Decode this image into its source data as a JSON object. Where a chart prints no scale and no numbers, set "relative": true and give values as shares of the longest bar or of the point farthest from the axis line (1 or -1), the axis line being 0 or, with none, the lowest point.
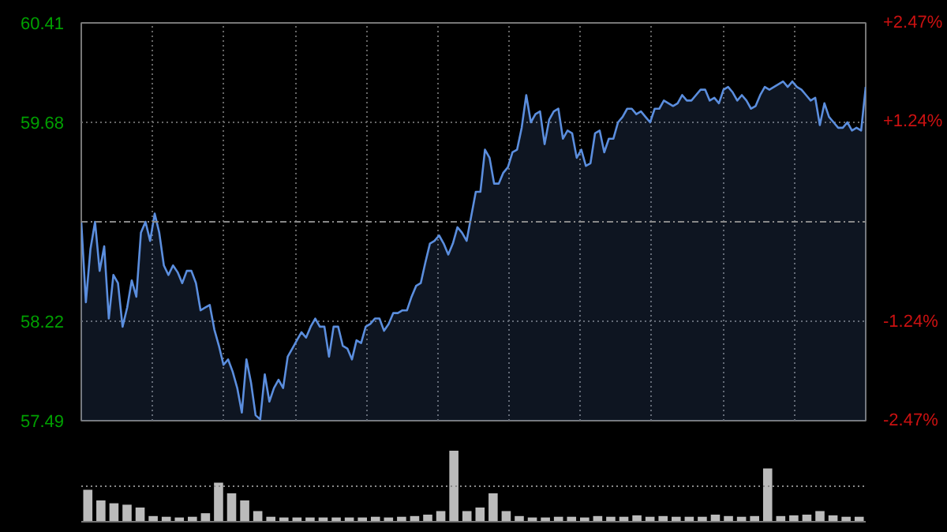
{
  "chart_data": [
    {
      "type": "area",
      "categories": [
        null,
        null,
        null,
        null,
        null,
        null,
        null,
        null,
        null,
        null,
        null,
        null,
        null,
        null,
        null,
        null,
        null,
        null,
        null,
        null,
        null,
        null,
        null,
        null,
        null,
        null,
        null,
        null,
        null,
        null,
        null,
        null,
        null,
        null,
        null,
        null,
        null,
        null,
        null,
        null,
        null,
        null,
        null,
        null,
        null,
        null,
        null,
        null,
        null,
        null,
        null,
        null,
        null,
        null,
        null,
        null,
        null,
        null,
        null,
        null,
        null,
        null,
        null,
        null,
        null,
        null,
        null,
        null,
        null,
        null,
        null,
        null,
        null,
        null,
        null,
        null,
        null,
        null,
        null,
        null,
        null,
        null,
        null,
        null,
        null,
        null,
        null,
        null,
        null,
        null,
        null,
        null,
        null,
        null,
        null,
        null,
        null,
        null,
        null,
        null,
        null,
        null,
        null,
        null,
        null,
        null,
        null,
        null,
        null,
        null,
        null,
        null,
        null,
        null,
        null,
        null,
        null,
        null,
        null,
        null,
        null,
        null,
        null,
        null,
        null,
        null,
        null,
        null,
        null,
        null,
        null,
        null,
        null,
        null,
        null,
        null,
        null,
        null,
        null,
        null,
        null,
        null,
        null,
        null,
        null,
        null,
        null,
        null,
        null,
        null,
        null,
        null,
        null,
        null,
        null,
        null,
        null,
        null,
        null,
        null,
        null,
        null,
        null,
        null,
        null,
        null,
        null,
        null,
        null,
        null,
        null,
        null
      ],
      "ylim": [
        57.49,
        60.41
      ],
      "yticks": [
        57.49,
        58.22,
        59.68,
        60.41
      ],
      "y2lim": [
        -2.47,
        2.47
      ],
      "y2ticks": [
        {
          "value": -2.47,
          "label": "-2.47%"
        },
        {
          "value": -1.24,
          "label": "-1.24%"
        },
        {
          "value": 1.24,
          "label": "+1.24%"
        },
        {
          "value": 2.47,
          "label": "+2.47%"
        }
      ],
      "grid": true,
      "ref_lines": [
        {
          "axis": "y",
          "value": 58.95,
          "label": null,
          "line_style": "dashed",
          "color": "#888888"
        }
      ],
      "series": [
        {
          "color": "#5b8ede",
          "values": [
            58.95,
            58.36,
            58.75,
            58.95,
            58.59,
            58.77,
            58.24,
            58.56,
            58.5,
            58.18,
            58.32,
            58.52,
            58.4,
            58.87,
            58.95,
            58.81,
            59.01,
            58.87,
            58.63,
            58.56,
            58.63,
            58.58,
            58.5,
            58.59,
            58.59,
            58.5,
            58.3,
            58.32,
            58.34,
            58.16,
            58.04,
            57.9,
            57.94,
            57.85,
            57.73,
            57.55,
            57.94,
            57.77,
            57.53,
            57.5,
            57.83,
            57.63,
            57.73,
            57.79,
            57.73,
            57.96,
            58.02,
            58.08,
            58.14,
            58.1,
            58.18,
            58.24,
            58.18,
            58.18,
            57.96,
            58.18,
            58.18,
            58.04,
            58.02,
            57.94,
            58.08,
            58.06,
            58.18,
            58.2,
            58.24,
            58.24,
            58.15,
            58.2,
            58.28,
            58.28,
            58.3,
            58.3,
            58.4,
            58.48,
            58.5,
            58.65,
            58.79,
            58.81,
            58.85,
            58.79,
            58.71,
            58.79,
            58.91,
            58.87,
            58.81,
            58.99,
            59.17,
            59.17,
            59.48,
            59.42,
            59.23,
            59.23,
            59.31,
            59.35,
            59.46,
            59.48,
            59.64,
            59.88,
            59.68,
            59.74,
            59.76,
            59.52,
            59.7,
            59.76,
            59.78,
            59.56,
            59.62,
            59.6,
            59.42,
            59.48,
            59.36,
            59.38,
            59.6,
            59.62,
            59.46,
            59.56,
            59.56,
            59.68,
            59.72,
            59.78,
            59.78,
            59.74,
            59.76,
            59.72,
            59.68,
            59.78,
            59.78,
            59.84,
            59.82,
            59.8,
            59.82,
            59.88,
            59.84,
            59.84,
            59.88,
            59.92,
            59.92,
            59.84,
            59.86,
            59.82,
            59.92,
            59.94,
            59.9,
            59.84,
            59.88,
            59.84,
            59.78,
            59.8,
            59.88,
            59.94,
            59.92,
            59.94,
            59.96,
            59.98,
            59.94,
            59.98,
            59.94,
            59.92,
            59.88,
            59.84,
            59.86,
            59.66,
            59.82,
            59.72,
            59.68,
            59.64,
            59.64,
            59.68,
            59.62,
            59.64,
            59.62,
            59.94
          ]
        }
      ]
    },
    {
      "type": "bar",
      "relative": true,
      "ref_lines": [
        {
          "axis": "y",
          "value": 0.5,
          "label": null,
          "line_style": "dotted",
          "color": "#888888"
        }
      ],
      "categories": [
        null,
        null,
        null,
        null,
        null,
        null,
        null,
        null,
        null,
        null,
        null,
        null,
        null,
        null,
        null,
        null,
        null,
        null,
        null,
        null,
        null,
        null,
        null,
        null,
        null,
        null,
        null,
        null,
        null,
        null,
        null,
        null,
        null,
        null,
        null,
        null,
        null,
        null,
        null,
        null,
        null,
        null,
        null,
        null,
        null,
        null,
        null,
        null,
        null,
        null,
        null,
        null,
        null,
        null,
        null,
        null,
        null,
        null,
        null,
        null
      ],
      "series": [
        {
          "color": "#bbbbbb",
          "values": [
            0.45,
            0.3,
            0.26,
            0.24,
            0.2,
            0.08,
            0.07,
            0.06,
            0.07,
            0.12,
            0.55,
            0.4,
            0.3,
            0.15,
            0.07,
            0.06,
            0.06,
            0.06,
            0.06,
            0.06,
            0.06,
            0.06,
            0.07,
            0.06,
            0.07,
            0.08,
            0.1,
            0.15,
            1,
            0.15,
            0.2,
            0.4,
            0.15,
            0.08,
            0.06,
            0.06,
            0.07,
            0.07,
            0.06,
            0.08,
            0.07,
            0.07,
            0.09,
            0.07,
            0.08,
            0.07,
            0.07,
            0.07,
            0.1,
            0.08,
            0.07,
            0.08,
            0.75,
            0.08,
            0.09,
            0.1,
            0.15,
            0.09,
            0.07,
            0.07
          ]
        }
      ]
    }
  ]
}
